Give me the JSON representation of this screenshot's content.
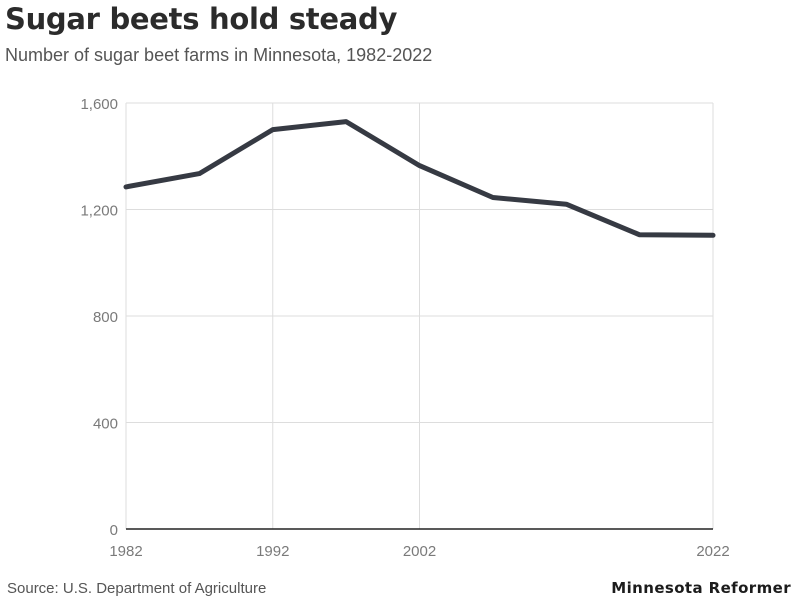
{
  "title": "Sugar beets hold steady",
  "subtitle": "Number of sugar beet farms in Minnesota, 1982-2022",
  "source": "Source: U.S. Department of Agriculture",
  "brand": "Minnesota Reformer",
  "colors": {
    "line": "#363a43",
    "grid": "#dddddd",
    "baseline": "#222222"
  },
  "chart_data": {
    "type": "line",
    "title": "Sugar beets hold steady",
    "subtitle": "Number of sugar beet farms in Minnesota, 1982-2022",
    "x": [
      1982,
      1989,
      1990,
      1995,
      2000,
      2005,
      2010,
      2015,
      2022
    ],
    "x_alt_note": "",
    "series": [
      {
        "values": [
          1285,
          1335,
          1500,
          1530,
          1365,
          1245,
          1220,
          1105,
          1103
        ]
      }
    ],
    "xlim": [
      1982,
      2022
    ],
    "ylim": [
      0,
      1600
    ],
    "xticks": [
      "1982",
      "1992",
      "2002",
      "2022"
    ],
    "yticks": [
      "0",
      "400",
      "800",
      "1,200",
      "1,600"
    ],
    "grid": true,
    "xlabel": "",
    "ylabel": ""
  }
}
